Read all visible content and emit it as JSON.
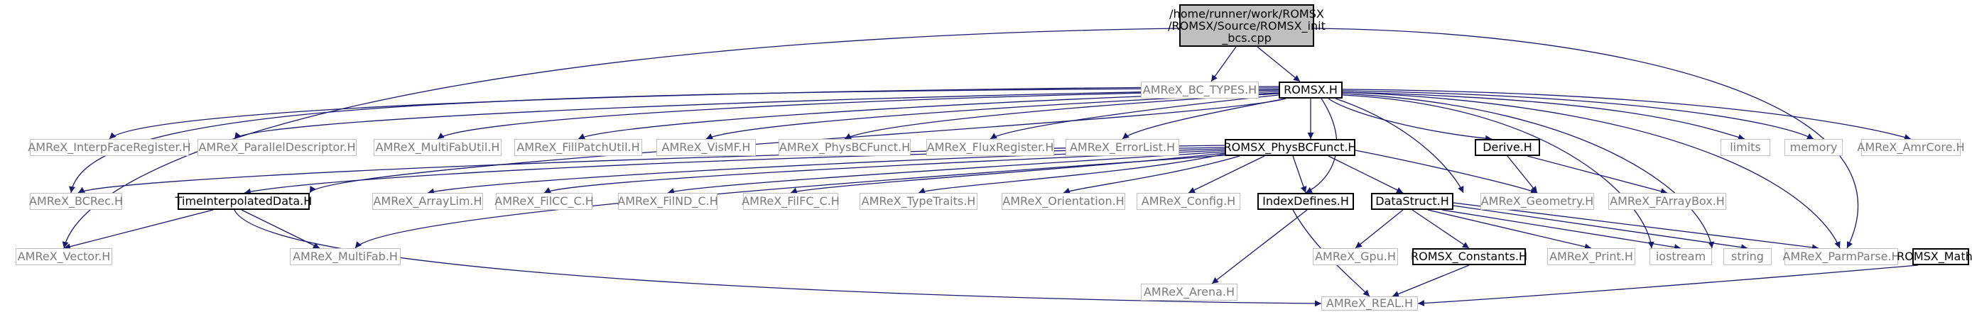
{
  "colors": {
    "edge": "#191970",
    "root_fill": "#bfbfbf",
    "external_border": "#bfbfbf",
    "internal_border": "#000000"
  },
  "nodes": {
    "root": {
      "line1": "/home/runner/work/ROMSX",
      "line2": "/ROMSX/Source/ROMSX_init",
      "line3": "_bcs.cpp"
    },
    "bc_types": "AMReX_BC_TYPES.H",
    "romsx": "ROMSX.H",
    "interp": "AMReX_InterpFaceRegister.H",
    "pardesc": "AMReX_ParallelDescriptor.H",
    "multifabutil": "AMReX_MultiFabUtil.H",
    "fillpatch": "AMReX_FillPatchUtil.H",
    "vismf": "AMReX_VisMF.H",
    "physbcfunct_amrex": "AMReX_PhysBCFunct.H",
    "fluxreg": "AMReX_FluxRegister.H",
    "errorlist": "AMReX_ErrorList.H",
    "romsx_physbc": "ROMSX_PhysBCFunct.H",
    "derive": "Derive.H",
    "limits": "limits",
    "memory": "memory",
    "amrcore": "AMReX_AmrCore.H",
    "bcrec": "AMReX_BCRec.H",
    "timeinterp": "TimeInterpolatedData.H",
    "arraylim": "AMReX_ArrayLim.H",
    "filcc": "AMReX_FilCC_C.H",
    "filnd": "AMReX_FilND_C.H",
    "filfc": "AMReX_FilFC_C.H",
    "typetraits": "AMReX_TypeTraits.H",
    "orientation": "AMReX_Orientation.H",
    "config": "AMReX_Config.H",
    "indexdefines": "IndexDefines.H",
    "datastruct": "DataStruct.H",
    "geometry": "AMReX_Geometry.H",
    "farraybox": "AMReX_FArrayBox.H",
    "vector": "AMReX_Vector.H",
    "multifab": "AMReX_MultiFab.H",
    "arena": "AMReX_Arena.H",
    "gpu": "AMReX_Gpu.H",
    "constants": "ROMSX_Constants.H",
    "print": "AMReX_Print.H",
    "iostream": "iostream",
    "string": "string",
    "parmparse": "AMReX_ParmParse.H",
    "math": "ROMSX_Math.H",
    "real": "AMReX_REAL.H"
  }
}
